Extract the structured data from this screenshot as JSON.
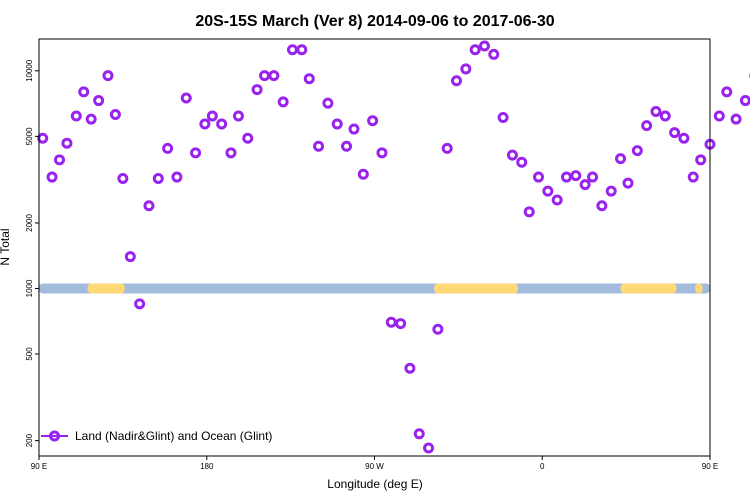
{
  "chart_data": {
    "type": "scatter",
    "title": "20S-15S March (Ver 8)   2014-09-06 to 2017-06-30",
    "xlabel": "Longitude (deg E)",
    "ylabel": "N Total",
    "y_scale": "log",
    "ylim": [
      170,
      14000
    ],
    "y_ticks": [
      {
        "value": 200,
        "label": "200"
      },
      {
        "value": 500,
        "label": "500"
      },
      {
        "value": 1000,
        "label": "1000"
      },
      {
        "value": 2000,
        "label": "2000"
      },
      {
        "value": 5000,
        "label": "5000"
      },
      {
        "value": 10000,
        "label": "10000"
      }
    ],
    "x_range_deg_east": [
      90,
      450
    ],
    "x_ticks": [
      {
        "value": 90,
        "label": "90 E"
      },
      {
        "value": 180,
        "label": "180"
      },
      {
        "value": 270,
        "label": "90 W"
      },
      {
        "value": 360,
        "label": "0"
      },
      {
        "value": 450,
        "label": "90 E"
      },
      {
        "value": 540,
        "label": "180"
      }
    ],
    "surface_band": {
      "value": 1000,
      "ocean_color": "#a3bbdc",
      "land_color": "#ffd978",
      "land_segments_deg_east": [
        [
          116,
          136
        ],
        [
          302,
          347
        ],
        [
          402,
          432
        ],
        [
          442,
          446
        ],
        [
          496,
          518
        ]
      ]
    },
    "series": [
      {
        "name": "Land (Nadir&Glint) and Ocean (Glint)",
        "color": "#9922ee",
        "points": [
          [
            92,
            4900
          ],
          [
            97,
            3250
          ],
          [
            101,
            3900
          ],
          [
            105,
            4650
          ],
          [
            110,
            6200
          ],
          [
            114,
            8000
          ],
          [
            118,
            6000
          ],
          [
            122,
            7300
          ],
          [
            127,
            9500
          ],
          [
            131,
            6300
          ],
          [
            135,
            3200
          ],
          [
            139,
            1400
          ],
          [
            144,
            850
          ],
          [
            149,
            2400
          ],
          [
            154,
            3200
          ],
          [
            159,
            4400
          ],
          [
            164,
            3250
          ],
          [
            169,
            7500
          ],
          [
            174,
            4200
          ],
          [
            179,
            5700
          ],
          [
            183,
            6200
          ],
          [
            188,
            5700
          ],
          [
            193,
            4200
          ],
          [
            197,
            6200
          ],
          [
            202,
            4900
          ],
          [
            207,
            8200
          ],
          [
            211,
            9500
          ],
          [
            216,
            9500
          ],
          [
            221,
            7200
          ],
          [
            226,
            12500
          ],
          [
            231,
            12500
          ],
          [
            235,
            9200
          ],
          [
            240,
            4500
          ],
          [
            245,
            7100
          ],
          [
            250,
            5700
          ],
          [
            255,
            4500
          ],
          [
            259,
            5400
          ],
          [
            264,
            3350
          ],
          [
            269,
            5900
          ],
          [
            274,
            4200
          ],
          [
            279,
            700
          ],
          [
            284,
            690
          ],
          [
            289,
            430
          ],
          [
            294,
            215
          ],
          [
            299,
            185
          ],
          [
            304,
            650
          ],
          [
            309,
            4400
          ],
          [
            314,
            9000
          ],
          [
            319,
            10200
          ],
          [
            324,
            12500
          ],
          [
            329,
            13000
          ],
          [
            334,
            11900
          ],
          [
            339,
            6100
          ],
          [
            344,
            4100
          ],
          [
            349,
            3800
          ],
          [
            353,
            2250
          ],
          [
            358,
            3250
          ],
          [
            363,
            2800
          ],
          [
            368,
            2550
          ],
          [
            373,
            3250
          ],
          [
            378,
            3300
          ],
          [
            383,
            3000
          ],
          [
            387,
            3250
          ],
          [
            392,
            2400
          ],
          [
            397,
            2800
          ],
          [
            402,
            3950
          ],
          [
            406,
            3050
          ],
          [
            411,
            4300
          ],
          [
            416,
            5600
          ],
          [
            421,
            6500
          ],
          [
            426,
            6200
          ],
          [
            431,
            5200
          ],
          [
            436,
            4900
          ],
          [
            441,
            3250
          ],
          [
            445,
            3900
          ],
          [
            450,
            4600
          ],
          [
            455,
            6200
          ],
          [
            459,
            8000
          ],
          [
            464,
            6000
          ],
          [
            469,
            7300
          ],
          [
            474,
            9500
          ],
          [
            479,
            6300
          ],
          [
            483,
            3200
          ],
          [
            488,
            1400
          ],
          [
            493,
            850
          ],
          [
            498,
            2400
          ],
          [
            502,
            3250
          ],
          [
            507,
            4400
          ],
          [
            512,
            3300
          ],
          [
            516,
            7500
          ]
        ]
      }
    ],
    "legend": {
      "placement": "bottom-left"
    }
  }
}
